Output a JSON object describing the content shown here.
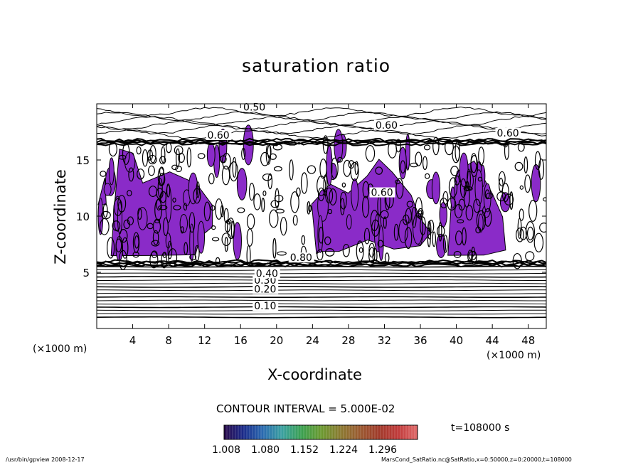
{
  "chart_data": {
    "type": "contour",
    "title": "saturation ratio",
    "xlabel": "X-coordinate",
    "ylabel": "Z-coordinate",
    "x_unit_left": "(×1000 m)",
    "x_unit_right": "(×1000 m)",
    "xlim": [
      0,
      50
    ],
    "ylim": [
      0,
      20
    ],
    "x_ticks": [
      4,
      8,
      12,
      16,
      20,
      24,
      28,
      32,
      36,
      40,
      44,
      48
    ],
    "y_ticks": [
      5,
      10,
      15
    ],
    "contour_interval_text": "CONTOUR INTERVAL = 5.000E-02",
    "contour_labels": [
      "0.50",
      "0.60",
      "0.10",
      "0.20",
      "0.30",
      "0.40",
      "0.60",
      "0.80",
      "0.60",
      "0.60"
    ],
    "time_label": "t=108000  s",
    "colorbar": {
      "ticks": [
        "1.008",
        "1.080",
        "1.152",
        "1.224",
        "1.296"
      ],
      "colors": [
        "#2a0a4a",
        "#1a2a8a",
        "#2a6ab0",
        "#3aa0a0",
        "#3aa050",
        "#6a9a30",
        "#8a7a30",
        "#9a5a30",
        "#a03a2a",
        "#c03a3a",
        "#e06a6a"
      ]
    },
    "fill_color": "#8a2bc8",
    "grid": false,
    "footer_left": "/usr/bin/gpview   2008-12-17",
    "footer_right": "MarsCond_SatRatio.nc@SatRatio,x=0:50000,z=0:20000,t=108000"
  }
}
